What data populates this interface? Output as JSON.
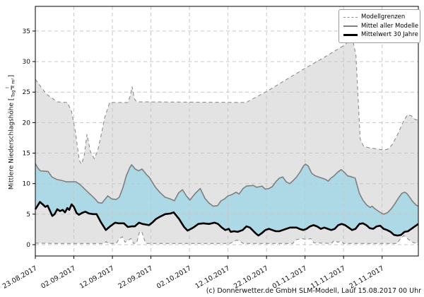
{
  "caption": "(c) Donnerwetter.de GmbH SLM-Modell, Lauf 15.08.2017 00 Uhr",
  "legend": {
    "items": [
      {
        "label": "Modellgrenzen",
        "style": "dashed-gray"
      },
      {
        "label": "Mittel aller Modelle",
        "style": "solid-gray"
      },
      {
        "label": "Mittelwert 30 Jahre",
        "style": "solid-black"
      }
    ]
  },
  "y_axis": {
    "label_prefix": "Mittlere Niederschlagshöhe [",
    "fraction_numerator": "l",
    "fraction_denominator": "Tag × m²",
    "label_suffix": "]",
    "ticks": [
      0,
      5,
      10,
      15,
      20,
      25,
      30,
      35
    ]
  },
  "x_axis": {
    "tick_labels": [
      "23.08.2017",
      "02.09.2017",
      "12.09.2017",
      "22.09.2017",
      "02.10.2017",
      "12.10.2017",
      "22.10.2017",
      "01.11.2017",
      "11.11.2017",
      "21.11.2017"
    ],
    "tick_days": [
      0,
      10,
      20,
      30,
      40,
      50,
      60,
      70,
      80,
      90
    ]
  },
  "chart_data": {
    "type": "line",
    "title": "",
    "xlabel": "",
    "ylabel": "Mittlere Niederschlagshöhe [l/(Tag × m²)]",
    "x_unit": "days since 23.08.2017",
    "x_range": [
      0,
      99.4
    ],
    "y_range": [
      -2,
      39
    ],
    "grid": true,
    "legend_position": "top-right",
    "colors": {
      "model_range_fill": "#e3e3e3",
      "model_bound_line": "#8c8c8c",
      "mean_fill": "#add8e6",
      "mean_line": "#7f7f7f",
      "mean30_line": "#000000",
      "grid_line": "#c6c6c6",
      "spine": "#000000"
    },
    "series": [
      {
        "name": "Modellgrenzen (obere Grenze)",
        "dash": true,
        "points": [
          [
            0,
            27.1
          ],
          [
            1.5,
            25.8
          ],
          [
            3,
            24.6
          ],
          [
            4.6,
            23.9
          ],
          [
            5.5,
            23.4
          ],
          [
            8.3,
            23.3
          ],
          [
            9.4,
            21.8
          ],
          [
            10.4,
            18.5
          ],
          [
            11.4,
            13.8
          ],
          [
            12,
            13.2
          ],
          [
            12.7,
            14.6
          ],
          [
            13.4,
            18.1
          ],
          [
            14.3,
            15.2
          ],
          [
            15.3,
            14.1
          ],
          [
            16.2,
            15.4
          ],
          [
            17.1,
            18
          ],
          [
            18,
            20.8
          ],
          [
            19.3,
            23.3
          ],
          [
            24,
            23.3
          ],
          [
            24.6,
            24.3
          ],
          [
            25.1,
            25.9
          ],
          [
            25.7,
            23.9
          ],
          [
            26.3,
            23.4
          ],
          [
            54.7,
            23.3
          ],
          [
            60,
            25.1
          ],
          [
            65,
            27
          ],
          [
            70,
            28.9
          ],
          [
            75,
            30.7
          ],
          [
            80,
            32.6
          ],
          [
            82.3,
            33.8
          ],
          [
            83.2,
            31
          ],
          [
            84.3,
            17.3
          ],
          [
            85.2,
            16.1
          ],
          [
            86.5,
            15.9
          ],
          [
            88.5,
            15.7
          ],
          [
            90.5,
            15.5
          ],
          [
            91.7,
            15.7
          ],
          [
            92.7,
            16.5
          ],
          [
            94.2,
            18.3
          ],
          [
            95.6,
            20.3
          ],
          [
            96.6,
            21.3
          ],
          [
            97.6,
            21.1
          ],
          [
            98.6,
            20.5
          ],
          [
            99.4,
            20.4
          ]
        ]
      },
      {
        "name": "Modellgrenzen (untere Grenze)",
        "dash": true,
        "points": [
          [
            0,
            0.25
          ],
          [
            5,
            0.2
          ],
          [
            10,
            0.2
          ],
          [
            14,
            0.2
          ],
          [
            17.8,
            0.2
          ],
          [
            18.4,
            0.5
          ],
          [
            19,
            0.2
          ],
          [
            21,
            0.2
          ],
          [
            21.8,
            1
          ],
          [
            22.6,
            1.3
          ],
          [
            23.3,
            0.4
          ],
          [
            24,
            0.7
          ],
          [
            24.8,
            1
          ],
          [
            25.5,
            0.2
          ],
          [
            26.3,
            0.3
          ],
          [
            27,
            2
          ],
          [
            27.6,
            2.2
          ],
          [
            28.3,
            0.8
          ],
          [
            28.8,
            0.2
          ],
          [
            50.5,
            0.2
          ],
          [
            51.5,
            0.5
          ],
          [
            52.3,
            0.75
          ],
          [
            53.2,
            0.5
          ],
          [
            54,
            0.2
          ],
          [
            66.8,
            0.2
          ],
          [
            67.6,
            0.8
          ],
          [
            69,
            1
          ],
          [
            70.5,
            0.85
          ],
          [
            71.5,
            1
          ],
          [
            72.3,
            0.3
          ],
          [
            76.8,
            0.2
          ],
          [
            77.6,
            0.7
          ],
          [
            78.5,
            0.4
          ],
          [
            79.3,
            0.55
          ],
          [
            80,
            0.2
          ],
          [
            93.8,
            0.2
          ],
          [
            94.8,
            1
          ],
          [
            95.7,
            1.5
          ],
          [
            96.6,
            1
          ],
          [
            97.6,
            0.5
          ],
          [
            98.3,
            0.3
          ],
          [
            99.4,
            0.25
          ]
        ]
      },
      {
        "name": "Mittel aller Modelle",
        "dash": false,
        "points": [
          [
            0,
            13.3
          ],
          [
            0.7,
            12.5
          ],
          [
            1.3,
            12.1
          ],
          [
            3.3,
            12
          ],
          [
            4.3,
            11.1
          ],
          [
            5.5,
            10.7
          ],
          [
            7,
            10.5
          ],
          [
            8,
            10.3
          ],
          [
            10.5,
            10.3
          ],
          [
            11.5,
            9.9
          ],
          [
            12.5,
            9.3
          ],
          [
            13.5,
            8.7
          ],
          [
            14.5,
            8.1
          ],
          [
            15.5,
            7.5
          ],
          [
            16.3,
            6.9
          ],
          [
            17.3,
            6.8
          ],
          [
            18.3,
            7.6
          ],
          [
            18.8,
            8
          ],
          [
            19.8,
            7.5
          ],
          [
            21,
            7.4
          ],
          [
            21.8,
            7.8
          ],
          [
            22.7,
            9.3
          ],
          [
            23.6,
            11.3
          ],
          [
            24.5,
            12.6
          ],
          [
            25,
            13.1
          ],
          [
            25.9,
            12.4
          ],
          [
            26.8,
            12.1
          ],
          [
            27.7,
            12.4
          ],
          [
            28.7,
            11.6
          ],
          [
            29.6,
            11
          ],
          [
            31.2,
            9.4
          ],
          [
            32.3,
            8.6
          ],
          [
            33.6,
            7.8
          ],
          [
            35,
            7.5
          ],
          [
            36.1,
            7.2
          ],
          [
            37.2,
            8.5
          ],
          [
            38.2,
            9
          ],
          [
            39.2,
            8
          ],
          [
            40.1,
            7.3
          ],
          [
            41.5,
            8.4
          ],
          [
            42.8,
            9.2
          ],
          [
            44,
            7.6
          ],
          [
            45.1,
            6.8
          ],
          [
            46.2,
            6.3
          ],
          [
            47.3,
            6.4
          ],
          [
            48.2,
            7.2
          ],
          [
            49.1,
            7.5
          ],
          [
            50,
            8
          ],
          [
            51,
            8.2
          ],
          [
            52.1,
            8.6
          ],
          [
            52.9,
            8.3
          ],
          [
            53.9,
            9.2
          ],
          [
            54.8,
            9.6
          ],
          [
            56.6,
            9.7
          ],
          [
            57.5,
            9.4
          ],
          [
            58.8,
            9.6
          ],
          [
            59.7,
            9.1
          ],
          [
            60.6,
            9.2
          ],
          [
            61.5,
            9.5
          ],
          [
            62.4,
            10.3
          ],
          [
            63.3,
            10.9
          ],
          [
            64.2,
            11.1
          ],
          [
            65.1,
            10.3
          ],
          [
            66,
            10
          ],
          [
            66.9,
            10.5
          ],
          [
            67.8,
            11.1
          ],
          [
            68.7,
            11.9
          ],
          [
            69.6,
            12.9
          ],
          [
            70.1,
            13.2
          ],
          [
            70.8,
            12.9
          ],
          [
            71.7,
            11.7
          ],
          [
            72.6,
            11.3
          ],
          [
            73.5,
            11.1
          ],
          [
            74.4,
            10.9
          ],
          [
            75.3,
            10.7
          ],
          [
            76,
            10.4
          ],
          [
            76.7,
            10.9
          ],
          [
            77.4,
            11.2
          ],
          [
            78.5,
            11.9
          ],
          [
            79.4,
            12.3
          ],
          [
            80.3,
            11.8
          ],
          [
            81,
            11.3
          ],
          [
            82.1,
            11.1
          ],
          [
            83,
            10.9
          ],
          [
            84.1,
            8.4
          ],
          [
            85,
            7.3
          ],
          [
            86,
            6.5
          ],
          [
            86.9,
            6.1
          ],
          [
            87.4,
            6.3
          ],
          [
            88.1,
            5.9
          ],
          [
            89,
            5.5
          ],
          [
            90,
            5.1
          ],
          [
            90.5,
            5
          ],
          [
            91.5,
            5.3
          ],
          [
            92.4,
            5.9
          ],
          [
            93.3,
            6.7
          ],
          [
            94.2,
            7.6
          ],
          [
            95.1,
            8.4
          ],
          [
            95.8,
            8.6
          ],
          [
            96.4,
            8.4
          ],
          [
            97,
            7.9
          ],
          [
            97.9,
            7.1
          ],
          [
            98.8,
            6.5
          ],
          [
            99.4,
            6.3
          ]
        ]
      },
      {
        "name": "Mittelwert 30 Jahre",
        "dash": false,
        "points": [
          [
            0,
            5.8
          ],
          [
            0.6,
            6.4
          ],
          [
            1.2,
            7
          ],
          [
            1.9,
            6.6
          ],
          [
            2.6,
            6.2
          ],
          [
            3.2,
            6.4
          ],
          [
            3.9,
            5.4
          ],
          [
            4.4,
            4.7
          ],
          [
            5,
            5
          ],
          [
            5.7,
            5.8
          ],
          [
            6.4,
            5.5
          ],
          [
            7.1,
            5.7
          ],
          [
            7.7,
            5.3
          ],
          [
            8.3,
            6
          ],
          [
            8.8,
            5.7
          ],
          [
            9.4,
            6.6
          ],
          [
            10,
            6.2
          ],
          [
            10.7,
            5.2
          ],
          [
            11.3,
            4.9
          ],
          [
            12.1,
            5.2
          ],
          [
            13,
            5.4
          ],
          [
            14,
            5.1
          ],
          [
            15,
            5
          ],
          [
            15.9,
            5
          ],
          [
            17,
            3.7
          ],
          [
            18.3,
            2.4
          ],
          [
            19.4,
            3
          ],
          [
            20.7,
            3.6
          ],
          [
            21.6,
            3.5
          ],
          [
            23,
            3.5
          ],
          [
            24,
            2.9
          ],
          [
            25,
            3
          ],
          [
            25.8,
            3
          ],
          [
            26.9,
            3.6
          ],
          [
            27.8,
            3.4
          ],
          [
            29.5,
            3.2
          ],
          [
            30.5,
            3.7
          ],
          [
            31.3,
            4.2
          ],
          [
            32.4,
            4.6
          ],
          [
            33.7,
            5
          ],
          [
            35,
            5.1
          ],
          [
            35.9,
            5.3
          ],
          [
            37.3,
            4.2
          ],
          [
            38.6,
            2.9
          ],
          [
            39.5,
            2.3
          ],
          [
            41,
            2.8
          ],
          [
            42.3,
            3.4
          ],
          [
            43.6,
            3.5
          ],
          [
            45.1,
            3.4
          ],
          [
            46.5,
            3.6
          ],
          [
            47.4,
            3.4
          ],
          [
            48.4,
            2.8
          ],
          [
            49.3,
            2.4
          ],
          [
            50.2,
            2.6
          ],
          [
            50.7,
            2.1
          ],
          [
            51.6,
            2.2
          ],
          [
            52.5,
            2.1
          ],
          [
            53.8,
            2.4
          ],
          [
            54.8,
            3
          ],
          [
            55.7,
            2.8
          ],
          [
            57.1,
            1.9
          ],
          [
            57.9,
            1.5
          ],
          [
            58.8,
            1.9
          ],
          [
            59.7,
            2.4
          ],
          [
            60.6,
            2.6
          ],
          [
            61.5,
            2.4
          ],
          [
            62.4,
            2.2
          ],
          [
            63.3,
            2.2
          ],
          [
            64.2,
            2.4
          ],
          [
            65.1,
            2.6
          ],
          [
            66.1,
            2.8
          ],
          [
            67.8,
            2.8
          ],
          [
            68.5,
            2.6
          ],
          [
            69.5,
            2.4
          ],
          [
            70.4,
            2.6
          ],
          [
            71.3,
            3
          ],
          [
            72.2,
            3.2
          ],
          [
            73.1,
            3
          ],
          [
            74.1,
            2.6
          ],
          [
            75,
            2.8
          ],
          [
            75.9,
            2.6
          ],
          [
            76.8,
            2.4
          ],
          [
            77.7,
            2.6
          ],
          [
            78.6,
            3.2
          ],
          [
            79.5,
            3.4
          ],
          [
            80.4,
            3.2
          ],
          [
            81.3,
            2.8
          ],
          [
            82.2,
            2.4
          ],
          [
            83.1,
            2.6
          ],
          [
            84.1,
            3.4
          ],
          [
            85,
            3.5
          ],
          [
            85.9,
            3.2
          ],
          [
            86.8,
            2.7
          ],
          [
            87.7,
            2.6
          ],
          [
            88.6,
            3
          ],
          [
            89.5,
            3.1
          ],
          [
            90.4,
            2.6
          ],
          [
            91.3,
            2.4
          ],
          [
            92.2,
            2.1
          ],
          [
            93.1,
            1.6
          ],
          [
            94,
            1.5
          ],
          [
            94.9,
            1.6
          ],
          [
            95.8,
            2.1
          ],
          [
            96.7,
            2.2
          ],
          [
            97.6,
            2.6
          ],
          [
            98.5,
            3
          ],
          [
            99.4,
            3.4
          ]
        ]
      }
    ],
    "fills": [
      {
        "name": "Modellgrenzen-Band",
        "between": [
          "Modellgrenzen (obere Grenze)",
          "Modellgrenzen (untere Grenze)"
        ],
        "color": "#e3e3e3"
      },
      {
        "name": "Mittel-Band",
        "between": [
          "Mittel aller Modelle",
          "Mittelwert 30 Jahre"
        ],
        "color": "#add8e6"
      }
    ]
  }
}
